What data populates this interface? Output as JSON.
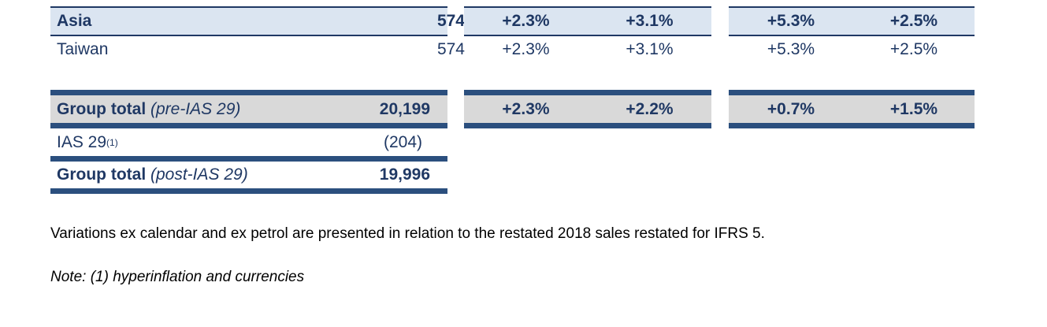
{
  "rows": {
    "asia": {
      "label": "Asia",
      "value": "574",
      "g1a": "+2.3%",
      "g1b": "+3.1%",
      "g2a": "+5.3%",
      "g2b": "+2.5%"
    },
    "taiwan": {
      "label": "Taiwan",
      "value": "574",
      "g1a": "+2.3%",
      "g1b": "+3.1%",
      "g2a": "+5.3%",
      "g2b": "+2.5%"
    },
    "group_pre": {
      "label": "Group total",
      "qualifier": "(pre-IAS 29)",
      "value": "20,199",
      "g1a": "+2.3%",
      "g1b": "+2.2%",
      "g2a": "+0.7%",
      "g2b": "+1.5%"
    },
    "ias29": {
      "label": "IAS 29",
      "sup": "(1)",
      "value": "(204)"
    },
    "group_post": {
      "label": "Group total",
      "qualifier": "(post-IAS 29)",
      "value": "19,996"
    }
  },
  "footnotes": {
    "variations": "Variations ex calendar and ex petrol are presented in relation to the restated 2018 sales restated for IFRS 5.",
    "note": "Note: (1) hyperinflation and currencies"
  },
  "colors": {
    "navy": "#1f3864",
    "light_blue_fill": "#dbe5f1",
    "grey_fill": "#d9d9d9",
    "bar": "#2b4f7e"
  }
}
